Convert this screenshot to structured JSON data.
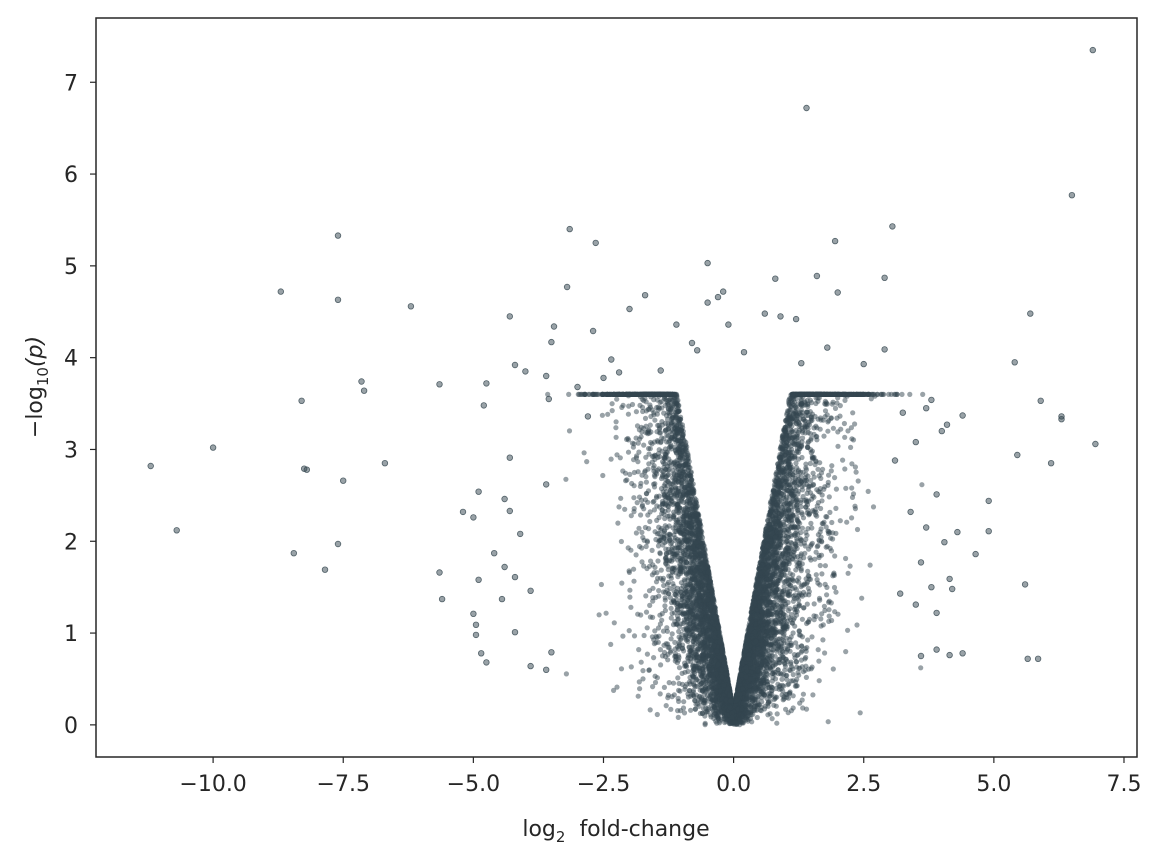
{
  "chart_data": {
    "type": "scatter",
    "title": "",
    "xlabel": {
      "prefix": "log",
      "sub": "2",
      "suffix": "  fold-change"
    },
    "ylabel": {
      "prefix": "−log",
      "sub": "10",
      "suffix": "(p)"
    },
    "xlim": [
      -12.25,
      7.75
    ],
    "ylim": [
      -0.35,
      7.7
    ],
    "xticks": [
      -10.0,
      -7.5,
      -5.0,
      -2.5,
      0.0,
      2.5,
      5.0,
      7.5
    ],
    "xtick_labels": [
      "−10.0",
      "−7.5",
      "−5.0",
      "−2.5",
      "0.0",
      "2.5",
      "5.0",
      "7.5"
    ],
    "yticks": [
      0,
      1,
      2,
      3,
      4,
      5,
      6,
      7
    ],
    "ytick_labels": [
      "0",
      "1",
      "2",
      "3",
      "4",
      "5",
      "6",
      "7"
    ],
    "grid": false,
    "point_color": "#34464f",
    "point_alpha": 0.5,
    "dense_region": "a dense cluster of thousands of points forming a V shape centered at x = 0, spanning roughly x = -2.5 to 2.5 and y = 0 to 3; only the sparse outer points are listed in points",
    "points": [
      [
        6.9,
        7.35
      ],
      [
        1.4,
        6.72
      ],
      [
        6.5,
        5.77
      ],
      [
        3.05,
        5.43
      ],
      [
        -3.15,
        5.4
      ],
      [
        -7.6,
        5.33
      ],
      [
        -2.65,
        5.25
      ],
      [
        1.95,
        5.27
      ],
      [
        -0.5,
        5.03
      ],
      [
        2.9,
        4.87
      ],
      [
        1.6,
        4.89
      ],
      [
        0.8,
        4.86
      ],
      [
        -8.7,
        4.72
      ],
      [
        -7.6,
        4.63
      ],
      [
        -6.2,
        4.56
      ],
      [
        -3.2,
        4.77
      ],
      [
        -1.7,
        4.68
      ],
      [
        -0.2,
        4.72
      ],
      [
        2.0,
        4.71
      ],
      [
        -4.3,
        4.45
      ],
      [
        -2.0,
        4.53
      ],
      [
        -0.3,
        4.66
      ],
      [
        -0.5,
        4.6
      ],
      [
        5.7,
        4.48
      ],
      [
        -3.45,
        4.34
      ],
      [
        1.2,
        4.42
      ],
      [
        0.6,
        4.48
      ],
      [
        0.9,
        4.45
      ],
      [
        -1.1,
        4.36
      ],
      [
        2.9,
        4.09
      ],
      [
        -3.5,
        4.17
      ],
      [
        -2.7,
        4.29
      ],
      [
        -0.8,
        4.16
      ],
      [
        1.8,
        4.11
      ],
      [
        5.4,
        3.95
      ],
      [
        -4.2,
        3.92
      ],
      [
        -4.0,
        3.85
      ],
      [
        -2.35,
        3.98
      ],
      [
        -0.1,
        4.36
      ],
      [
        0.2,
        4.06
      ],
      [
        -0.7,
        4.08
      ],
      [
        2.5,
        3.93
      ],
      [
        -7.15,
        3.74
      ],
      [
        -7.1,
        3.64
      ],
      [
        -5.65,
        3.71
      ],
      [
        -4.75,
        3.72
      ],
      [
        -3.6,
        3.8
      ],
      [
        -2.2,
        3.84
      ],
      [
        -1.4,
        3.86
      ],
      [
        1.3,
        3.94
      ],
      [
        -8.3,
        3.53
      ],
      [
        -4.8,
        3.48
      ],
      [
        -3.0,
        3.68
      ],
      [
        -2.5,
        3.78
      ],
      [
        3.8,
        3.54
      ],
      [
        5.9,
        3.53
      ],
      [
        3.25,
        3.4
      ],
      [
        4.4,
        3.37
      ],
      [
        6.3,
        3.36
      ],
      [
        6.3,
        3.33
      ],
      [
        4.1,
        3.27
      ],
      [
        4.0,
        3.2
      ],
      [
        3.7,
        3.45
      ],
      [
        -3.55,
        3.55
      ],
      [
        -2.8,
        3.36
      ],
      [
        -10.0,
        3.02
      ],
      [
        -11.2,
        2.82
      ],
      [
        -8.25,
        2.79
      ],
      [
        -8.2,
        2.78
      ],
      [
        -6.7,
        2.85
      ],
      [
        -7.5,
        2.66
      ],
      [
        6.95,
        3.06
      ],
      [
        5.45,
        2.94
      ],
      [
        6.1,
        2.85
      ],
      [
        3.5,
        3.08
      ],
      [
        3.1,
        2.88
      ],
      [
        -4.3,
        2.91
      ],
      [
        -3.6,
        2.62
      ],
      [
        -4.9,
        2.54
      ],
      [
        -4.4,
        2.46
      ],
      [
        3.9,
        2.51
      ],
      [
        4.9,
        2.44
      ],
      [
        -5.2,
        2.32
      ],
      [
        -5.0,
        2.26
      ],
      [
        -4.3,
        2.33
      ],
      [
        -4.1,
        2.08
      ],
      [
        3.4,
        2.32
      ],
      [
        4.3,
        2.1
      ],
      [
        4.9,
        2.11
      ],
      [
        3.7,
        2.15
      ],
      [
        -10.7,
        2.12
      ],
      [
        -7.6,
        1.97
      ],
      [
        -4.6,
        1.87
      ],
      [
        -4.4,
        1.72
      ],
      [
        4.05,
        1.99
      ],
      [
        4.65,
        1.86
      ],
      [
        3.6,
        1.77
      ],
      [
        -8.45,
        1.87
      ],
      [
        -7.85,
        1.69
      ],
      [
        -5.65,
        1.66
      ],
      [
        -4.9,
        1.58
      ],
      [
        -4.2,
        1.61
      ],
      [
        4.15,
        1.59
      ],
      [
        4.2,
        1.48
      ],
      [
        3.8,
        1.5
      ],
      [
        5.6,
        1.53
      ],
      [
        -5.6,
        1.37
      ],
      [
        -4.45,
        1.37
      ],
      [
        -3.9,
        1.46
      ],
      [
        3.2,
        1.43
      ],
      [
        -5.0,
        1.21
      ],
      [
        -4.95,
        1.09
      ],
      [
        -4.2,
        1.01
      ],
      [
        3.9,
        1.22
      ],
      [
        3.5,
        1.31
      ],
      [
        -4.95,
        0.98
      ],
      [
        -4.85,
        0.78
      ],
      [
        -4.75,
        0.68
      ],
      [
        -3.5,
        0.79
      ],
      [
        -3.9,
        0.64
      ],
      [
        -3.6,
        0.6
      ],
      [
        3.9,
        0.82
      ],
      [
        4.15,
        0.76
      ],
      [
        4.4,
        0.78
      ],
      [
        3.6,
        0.75
      ],
      [
        5.65,
        0.72
      ],
      [
        5.85,
        0.72
      ]
    ]
  }
}
